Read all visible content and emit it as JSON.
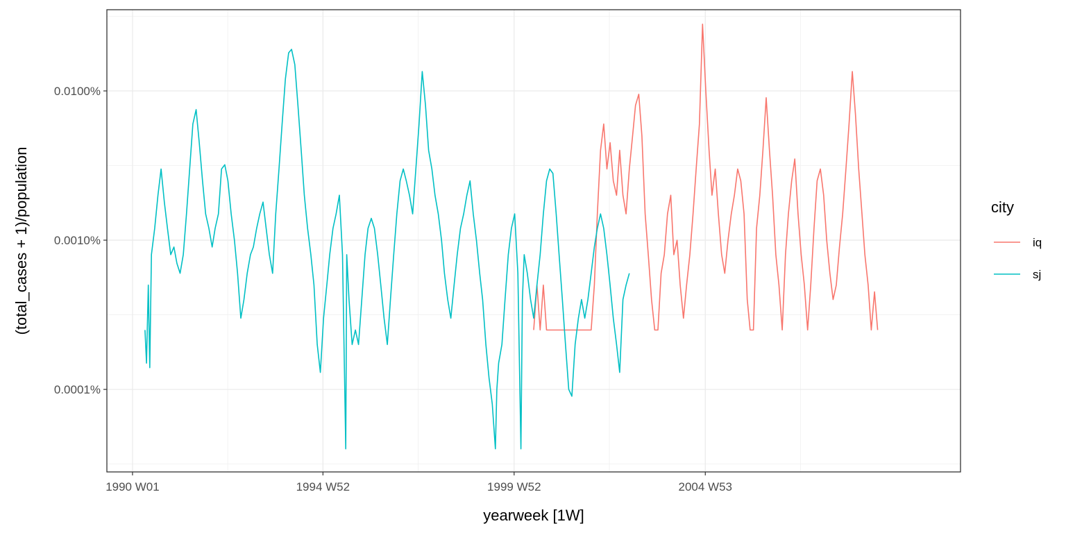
{
  "chart_data": {
    "type": "line",
    "title": "",
    "xlabel": "yearweek [1W]",
    "ylabel": "(total_cases + 1)/population",
    "y_scale": "log10",
    "y_unit": "percent",
    "ylim": [
      2.8e-05,
      0.035
    ],
    "y_ticks": [
      {
        "value": 0.0001,
        "label": "0.0001%"
      },
      {
        "value": 0.001,
        "label": "0.0010%"
      },
      {
        "value": 0.01,
        "label": "0.0100%"
      }
    ],
    "xlim": [
      "1989-05-01",
      "2011-09-01"
    ],
    "x_ticks": [
      {
        "value": "1990-01-01",
        "label": "1990 W01"
      },
      {
        "value": "1994-12-26",
        "label": "1994 W52"
      },
      {
        "value": "1999-12-27",
        "label": "1999 W52"
      },
      {
        "value": "2004-12-27",
        "label": "2004 W53"
      }
    ],
    "grid": true,
    "legend": {
      "title": "city",
      "position": "right"
    },
    "series": [
      {
        "name": "iq",
        "color": "#F8766D",
        "points": [
          [
            "2000-07-01",
            0.00025
          ],
          [
            "2000-08-01",
            0.0005
          ],
          [
            "2000-09-01",
            0.00025
          ],
          [
            "2000-10-01",
            0.0005
          ],
          [
            "2000-11-01",
            0.00025
          ],
          [
            "2001-01-01",
            0.00025
          ],
          [
            "2001-06-01",
            0.00025
          ],
          [
            "2001-12-01",
            0.00025
          ],
          [
            "2002-01-01",
            0.00025
          ],
          [
            "2002-02-01",
            0.0005
          ],
          [
            "2002-03-01",
            0.0015
          ],
          [
            "2002-04-01",
            0.004
          ],
          [
            "2002-05-01",
            0.006
          ],
          [
            "2002-06-01",
            0.003
          ],
          [
            "2002-07-01",
            0.0045
          ],
          [
            "2002-08-01",
            0.0025
          ],
          [
            "2002-09-01",
            0.002
          ],
          [
            "2002-10-01",
            0.004
          ],
          [
            "2002-11-01",
            0.002
          ],
          [
            "2002-12-01",
            0.0015
          ],
          [
            "2003-01-01",
            0.003
          ],
          [
            "2003-02-01",
            0.005
          ],
          [
            "2003-03-01",
            0.008
          ],
          [
            "2003-04-01",
            0.0095
          ],
          [
            "2003-05-01",
            0.005
          ],
          [
            "2003-06-01",
            0.0015
          ],
          [
            "2003-07-01",
            0.0008
          ],
          [
            "2003-08-01",
            0.0004
          ],
          [
            "2003-09-01",
            0.00025
          ],
          [
            "2003-10-01",
            0.00025
          ],
          [
            "2003-11-01",
            0.0006
          ],
          [
            "2003-12-01",
            0.0008
          ],
          [
            "2004-01-01",
            0.0015
          ],
          [
            "2004-02-01",
            0.002
          ],
          [
            "2004-03-01",
            0.0008
          ],
          [
            "2004-04-01",
            0.001
          ],
          [
            "2004-05-01",
            0.0005
          ],
          [
            "2004-06-01",
            0.0003
          ],
          [
            "2004-07-01",
            0.0005
          ],
          [
            "2004-08-01",
            0.0008
          ],
          [
            "2004-09-01",
            0.0015
          ],
          [
            "2004-10-01",
            0.003
          ],
          [
            "2004-11-01",
            0.006
          ],
          [
            "2004-12-01",
            0.028
          ],
          [
            "2005-01-01",
            0.01
          ],
          [
            "2005-02-01",
            0.004
          ],
          [
            "2005-03-01",
            0.002
          ],
          [
            "2005-04-01",
            0.003
          ],
          [
            "2005-05-01",
            0.0015
          ],
          [
            "2005-06-01",
            0.0008
          ],
          [
            "2005-07-01",
            0.0006
          ],
          [
            "2005-08-01",
            0.001
          ],
          [
            "2005-09-01",
            0.0015
          ],
          [
            "2005-10-01",
            0.002
          ],
          [
            "2005-11-01",
            0.003
          ],
          [
            "2005-12-01",
            0.0025
          ],
          [
            "2006-01-01",
            0.0015
          ],
          [
            "2006-02-01",
            0.0004
          ],
          [
            "2006-03-01",
            0.00025
          ],
          [
            "2006-04-01",
            0.00025
          ],
          [
            "2006-05-01",
            0.0012
          ],
          [
            "2006-06-01",
            0.002
          ],
          [
            "2006-07-01",
            0.004
          ],
          [
            "2006-08-01",
            0.009
          ],
          [
            "2006-09-01",
            0.004
          ],
          [
            "2006-10-01",
            0.002
          ],
          [
            "2006-11-01",
            0.0008
          ],
          [
            "2006-12-01",
            0.0005
          ],
          [
            "2007-01-01",
            0.00025
          ],
          [
            "2007-02-01",
            0.0008
          ],
          [
            "2007-03-01",
            0.0015
          ],
          [
            "2007-04-01",
            0.0025
          ],
          [
            "2007-05-01",
            0.0035
          ],
          [
            "2007-06-01",
            0.0015
          ],
          [
            "2007-07-01",
            0.0008
          ],
          [
            "2007-08-01",
            0.0005
          ],
          [
            "2007-09-01",
            0.00025
          ],
          [
            "2007-10-01",
            0.0005
          ],
          [
            "2007-11-01",
            0.0012
          ],
          [
            "2007-12-01",
            0.0025
          ],
          [
            "2008-01-01",
            0.003
          ],
          [
            "2008-02-01",
            0.002
          ],
          [
            "2008-03-01",
            0.001
          ],
          [
            "2008-04-01",
            0.0006
          ],
          [
            "2008-05-01",
            0.0004
          ],
          [
            "2008-06-01",
            0.0005
          ],
          [
            "2008-07-01",
            0.0009
          ],
          [
            "2008-08-01",
            0.0015
          ],
          [
            "2008-09-01",
            0.003
          ],
          [
            "2008-10-01",
            0.006
          ],
          [
            "2008-11-01",
            0.0135
          ],
          [
            "2008-12-01",
            0.007
          ],
          [
            "2009-01-01",
            0.003
          ],
          [
            "2009-02-01",
            0.0015
          ],
          [
            "2009-03-01",
            0.0008
          ],
          [
            "2009-04-01",
            0.0005
          ],
          [
            "2009-05-01",
            0.00025
          ],
          [
            "2009-06-01",
            0.00045
          ],
          [
            "2009-07-01",
            0.00025
          ]
        ]
      },
      {
        "name": "sj",
        "color": "#00BFC4",
        "points": [
          [
            "1990-04-30",
            0.00025
          ],
          [
            "1990-05-15",
            0.00015
          ],
          [
            "1990-06-01",
            0.0005
          ],
          [
            "1990-06-15",
            0.00014
          ],
          [
            "1990-07-01",
            0.0008
          ],
          [
            "1990-08-01",
            0.0012
          ],
          [
            "1990-09-01",
            0.002
          ],
          [
            "1990-10-01",
            0.003
          ],
          [
            "1990-11-01",
            0.0018
          ],
          [
            "1990-12-01",
            0.0012
          ],
          [
            "1991-01-01",
            0.0008
          ],
          [
            "1991-02-01",
            0.0009
          ],
          [
            "1991-03-01",
            0.0007
          ],
          [
            "1991-04-01",
            0.0006
          ],
          [
            "1991-05-01",
            0.0008
          ],
          [
            "1991-06-01",
            0.0015
          ],
          [
            "1991-07-01",
            0.003
          ],
          [
            "1991-08-01",
            0.006
          ],
          [
            "1991-09-01",
            0.0075
          ],
          [
            "1991-10-01",
            0.0045
          ],
          [
            "1991-11-01",
            0.0025
          ],
          [
            "1991-12-01",
            0.0015
          ],
          [
            "1992-01-01",
            0.0012
          ],
          [
            "1992-02-01",
            0.0009
          ],
          [
            "1992-03-01",
            0.0012
          ],
          [
            "1992-04-01",
            0.0015
          ],
          [
            "1992-05-01",
            0.003
          ],
          [
            "1992-06-01",
            0.0032
          ],
          [
            "1992-07-01",
            0.0025
          ],
          [
            "1992-08-01",
            0.0015
          ],
          [
            "1992-09-01",
            0.001
          ],
          [
            "1992-10-01",
            0.0006
          ],
          [
            "1992-11-01",
            0.0003
          ],
          [
            "1992-12-01",
            0.0004
          ],
          [
            "1993-01-01",
            0.0006
          ],
          [
            "1993-02-01",
            0.0008
          ],
          [
            "1993-03-01",
            0.0009
          ],
          [
            "1993-04-01",
            0.0012
          ],
          [
            "1993-05-01",
            0.0015
          ],
          [
            "1993-06-01",
            0.0018
          ],
          [
            "1993-07-01",
            0.0012
          ],
          [
            "1993-08-01",
            0.0008
          ],
          [
            "1993-09-01",
            0.0006
          ],
          [
            "1993-10-01",
            0.0015
          ],
          [
            "1993-11-01",
            0.003
          ],
          [
            "1993-12-01",
            0.006
          ],
          [
            "1994-01-01",
            0.012
          ],
          [
            "1994-02-01",
            0.018
          ],
          [
            "1994-03-01",
            0.019
          ],
          [
            "1994-04-01",
            0.015
          ],
          [
            "1994-05-01",
            0.008
          ],
          [
            "1994-06-01",
            0.004
          ],
          [
            "1994-07-01",
            0.002
          ],
          [
            "1994-08-01",
            0.0012
          ],
          [
            "1994-09-01",
            0.0008
          ],
          [
            "1994-10-01",
            0.0005
          ],
          [
            "1994-11-01",
            0.0002
          ],
          [
            "1994-12-01",
            0.00013
          ],
          [
            "1995-01-01",
            0.0003
          ],
          [
            "1995-02-01",
            0.0005
          ],
          [
            "1995-03-01",
            0.0008
          ],
          [
            "1995-04-01",
            0.0012
          ],
          [
            "1995-05-01",
            0.0015
          ],
          [
            "1995-06-01",
            0.002
          ],
          [
            "1995-07-01",
            0.0008
          ],
          [
            "1995-08-01",
            4e-05
          ],
          [
            "1995-08-10",
            0.0008
          ],
          [
            "1995-09-01",
            0.0004
          ],
          [
            "1995-10-01",
            0.0002
          ],
          [
            "1995-11-01",
            0.00025
          ],
          [
            "1995-12-01",
            0.0002
          ],
          [
            "1996-01-01",
            0.0004
          ],
          [
            "1996-02-01",
            0.0008
          ],
          [
            "1996-03-01",
            0.0012
          ],
          [
            "1996-04-01",
            0.0014
          ],
          [
            "1996-05-01",
            0.0012
          ],
          [
            "1996-06-01",
            0.0008
          ],
          [
            "1996-07-01",
            0.0005
          ],
          [
            "1996-08-01",
            0.0003
          ],
          [
            "1996-09-01",
            0.0002
          ],
          [
            "1996-10-01",
            0.0004
          ],
          [
            "1996-11-01",
            0.0008
          ],
          [
            "1996-12-01",
            0.0015
          ],
          [
            "1997-01-01",
            0.0025
          ],
          [
            "1997-02-01",
            0.003
          ],
          [
            "1997-03-01",
            0.0025
          ],
          [
            "1997-04-01",
            0.002
          ],
          [
            "1997-05-01",
            0.0015
          ],
          [
            "1997-06-01",
            0.003
          ],
          [
            "1997-07-01",
            0.006
          ],
          [
            "1997-08-01",
            0.0135
          ],
          [
            "1997-09-01",
            0.008
          ],
          [
            "1997-10-01",
            0.004
          ],
          [
            "1997-11-01",
            0.003
          ],
          [
            "1997-12-01",
            0.002
          ],
          [
            "1998-01-01",
            0.0015
          ],
          [
            "1998-02-01",
            0.001
          ],
          [
            "1998-03-01",
            0.0006
          ],
          [
            "1998-04-01",
            0.0004
          ],
          [
            "1998-05-01",
            0.0003
          ],
          [
            "1998-06-01",
            0.0005
          ],
          [
            "1998-07-01",
            0.0008
          ],
          [
            "1998-08-01",
            0.0012
          ],
          [
            "1998-09-01",
            0.0015
          ],
          [
            "1998-10-01",
            0.002
          ],
          [
            "1998-11-01",
            0.0025
          ],
          [
            "1998-12-01",
            0.0015
          ],
          [
            "1999-01-01",
            0.001
          ],
          [
            "1999-02-01",
            0.0006
          ],
          [
            "1999-03-01",
            0.0004
          ],
          [
            "1999-04-01",
            0.0002
          ],
          [
            "1999-05-01",
            0.00012
          ],
          [
            "1999-06-01",
            8e-05
          ],
          [
            "1999-07-01",
            4e-05
          ],
          [
            "1999-07-15",
            0.0001
          ],
          [
            "1999-08-01",
            0.00015
          ],
          [
            "1999-09-01",
            0.0002
          ],
          [
            "1999-10-01",
            0.0004
          ],
          [
            "1999-11-01",
            0.0008
          ],
          [
            "1999-12-01",
            0.0012
          ],
          [
            "2000-01-01",
            0.0015
          ],
          [
            "2000-02-01",
            0.0006
          ],
          [
            "2000-03-01",
            4e-05
          ],
          [
            "2000-03-15",
            0.0004
          ],
          [
            "2000-04-01",
            0.0008
          ],
          [
            "2000-05-01",
            0.0006
          ],
          [
            "2000-06-01",
            0.0004
          ],
          [
            "2000-07-01",
            0.0003
          ],
          [
            "2000-08-01",
            0.0005
          ],
          [
            "2000-09-01",
            0.0008
          ],
          [
            "2000-10-01",
            0.0015
          ],
          [
            "2000-11-01",
            0.0025
          ],
          [
            "2000-12-01",
            0.003
          ],
          [
            "2001-01-01",
            0.0028
          ],
          [
            "2001-02-01",
            0.0015
          ],
          [
            "2001-03-01",
            0.0008
          ],
          [
            "2001-04-01",
            0.0004
          ],
          [
            "2001-05-01",
            0.0002
          ],
          [
            "2001-06-01",
            0.0001
          ],
          [
            "2001-07-01",
            9e-05
          ],
          [
            "2001-08-01",
            0.0002
          ],
          [
            "2001-09-01",
            0.0003
          ],
          [
            "2001-10-01",
            0.0004
          ],
          [
            "2001-11-01",
            0.0003
          ],
          [
            "2001-12-01",
            0.0004
          ],
          [
            "2002-01-01",
            0.0006
          ],
          [
            "2002-02-01",
            0.0009
          ],
          [
            "2002-03-01",
            0.0012
          ],
          [
            "2002-04-01",
            0.0015
          ],
          [
            "2002-05-01",
            0.0012
          ],
          [
            "2002-06-01",
            0.0008
          ],
          [
            "2002-07-01",
            0.0005
          ],
          [
            "2002-08-01",
            0.0003
          ],
          [
            "2002-09-01",
            0.0002
          ],
          [
            "2002-10-01",
            0.00013
          ],
          [
            "2002-11-01",
            0.0004
          ],
          [
            "2002-12-01",
            0.0005
          ],
          [
            "2003-01-01",
            0.0006
          ]
        ]
      }
    ]
  }
}
